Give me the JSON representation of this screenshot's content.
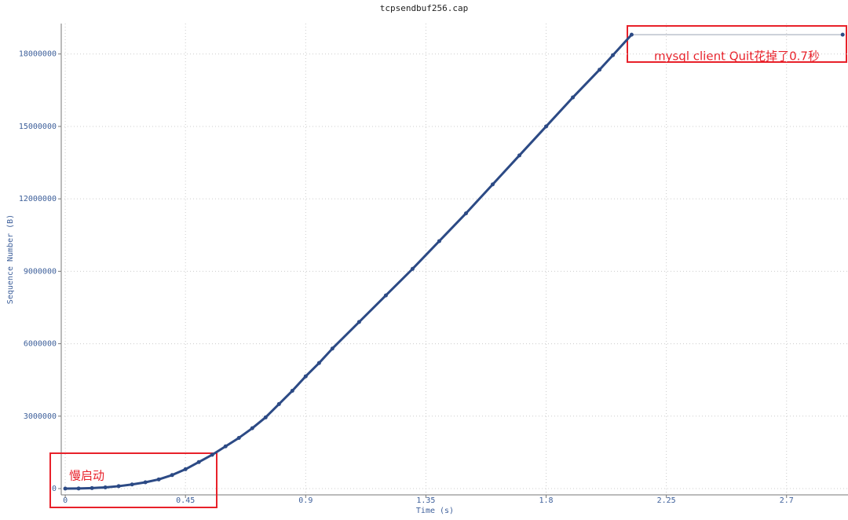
{
  "chart_data": {
    "type": "line",
    "title": "tcpsendbuf256.cap",
    "x_label": "Time (s)",
    "y_label": "Sequence Number (B)",
    "x": [
      0,
      0.05,
      0.1,
      0.15,
      0.2,
      0.25,
      0.3,
      0.35,
      0.4,
      0.45,
      0.5,
      0.55,
      0.6,
      0.65,
      0.7,
      0.75,
      0.8,
      0.85,
      0.9,
      0.95,
      1.0,
      1.1,
      1.2,
      1.3,
      1.4,
      1.5,
      1.6,
      1.7,
      1.8,
      1.9,
      2.0,
      2.05,
      2.12,
      2.91
    ],
    "values": [
      0,
      5000,
      20000,
      50000,
      100000,
      170000,
      260000,
      380000,
      560000,
      800000,
      1100000,
      1400000,
      1750000,
      2100000,
      2500000,
      2950000,
      3500000,
      4050000,
      4650000,
      5200000,
      5800000,
      6900000,
      8000000,
      9100000,
      10250000,
      11400000,
      12600000,
      13800000,
      15000000,
      16200000,
      17350000,
      17950000,
      18800000,
      18800000
    ],
    "color": "#2c4a85",
    "connector_color": "#9aa4b4",
    "xlim": [
      -0.015,
      2.93
    ],
    "xticks": [
      0,
      0.45,
      0.9,
      1.35,
      1.8,
      2.25,
      2.7
    ],
    "ylim": [
      -260000,
      19260000
    ],
    "yticks": [
      0,
      3000000,
      6000000,
      9000000,
      12000000,
      15000000,
      18000000
    ],
    "grid": true,
    "annotations": [
      "慢启动",
      "mysql client Quit花掉了0.7秒"
    ],
    "annotation_color": "#e8212a"
  }
}
